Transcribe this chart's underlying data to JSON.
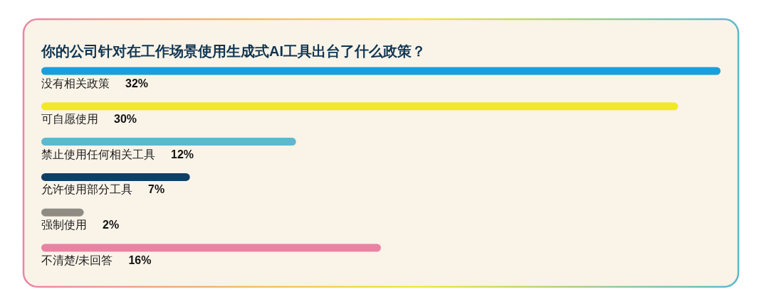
{
  "chart_data": {
    "type": "bar",
    "orientation": "horizontal",
    "title": "你的公司针对在工作场景使用生成式AI工具出台了什么政策？",
    "categories": [
      "没有相关政策",
      "可自愿使用",
      "禁止使用任何相关工具",
      "允许使用部分工具",
      "强制使用",
      "不清楚/未回答"
    ],
    "values": [
      32,
      30,
      12,
      7,
      2,
      16
    ],
    "colors": [
      "#1a9fdc",
      "#f2e82a",
      "#5bb8cf",
      "#103f66",
      "#8f8c84",
      "#e883a3"
    ],
    "value_labels": [
      "32%",
      "30%",
      "12%",
      "7%",
      "2%",
      "16%"
    ]
  }
}
